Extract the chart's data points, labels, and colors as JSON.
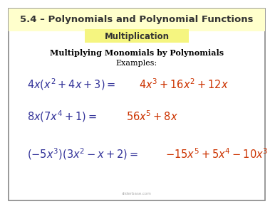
{
  "title": "5.4 – Polynomials and Polynomial Functions",
  "subtitle": "Multiplication",
  "heading": "Multiplying Monomials by Polynomials",
  "subheading": "Examples:",
  "eq1_left": "$4x\\left(x^2+4x+3\\right)=$",
  "eq1_right": "$4x^3+16x^2+12x$",
  "eq2_left": "$8x\\left(7x^4+1\\right)=$",
  "eq2_right": "$56x^5+8x$",
  "eq3_left": "$\\left(-5x^3\\right)\\left(3x^2-x+2\\right)=$",
  "eq3_right": "$-15x^5+5x^4-10x^3$",
  "bg_color": "#ffffff",
  "header_bg": "#ffffcc",
  "subtitle_bg": "#f5f580",
  "title_color": "#333333",
  "eq_left_color": "#333399",
  "eq_right_color": "#cc3300",
  "heading_color": "#000000",
  "border_color": "#888888",
  "title_fontsize": 9.5,
  "subtitle_fontsize": 8.5,
  "heading_fontsize": 8.0,
  "eq_fontsize": 10.5
}
